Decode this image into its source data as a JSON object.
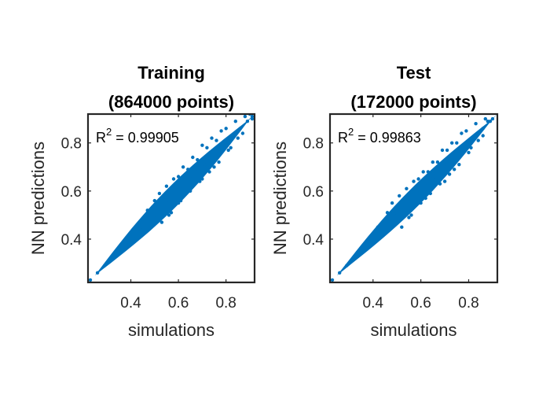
{
  "chart_data": [
    {
      "type": "scatter",
      "title": [
        "Training",
        "(864000 points)"
      ],
      "xlabel": "simulations",
      "ylabel": "NN predictions",
      "xlim": [
        0.22,
        0.92
      ],
      "ylim": [
        0.22,
        0.92
      ],
      "xticks": [
        0.4,
        0.6,
        0.8
      ],
      "yticks": [
        0.4,
        0.6,
        0.8
      ],
      "xtick_labels": [
        "0.4",
        "0.6",
        "0.8"
      ],
      "ytick_labels": [
        "0.4",
        "0.6",
        "0.8"
      ],
      "annotation": {
        "prefix": "R",
        "sup": "2",
        "text": " = 0.99905"
      },
      "point_count": 864000,
      "color": "#0072BD",
      "grid": false,
      "series": [
        {
          "points": [
            [
              0.23,
              0.23
            ],
            [
              0.26,
              0.26
            ],
            [
              0.29,
              0.29
            ],
            [
              0.32,
              0.32
            ],
            [
              0.35,
              0.35
            ],
            [
              0.38,
              0.38
            ],
            [
              0.41,
              0.41
            ],
            [
              0.44,
              0.44
            ],
            [
              0.47,
              0.47
            ],
            [
              0.5,
              0.5
            ],
            [
              0.53,
              0.53
            ],
            [
              0.56,
              0.56
            ],
            [
              0.59,
              0.59
            ],
            [
              0.62,
              0.62
            ],
            [
              0.65,
              0.65
            ],
            [
              0.68,
              0.68
            ],
            [
              0.71,
              0.71
            ],
            [
              0.74,
              0.74
            ],
            [
              0.77,
              0.77
            ],
            [
              0.8,
              0.8
            ],
            [
              0.83,
              0.83
            ],
            [
              0.86,
              0.86
            ],
            [
              0.89,
              0.89
            ],
            [
              0.91,
              0.91
            ],
            [
              0.5,
              0.56
            ],
            [
              0.52,
              0.59
            ],
            [
              0.55,
              0.62
            ],
            [
              0.58,
              0.65
            ],
            [
              0.62,
              0.7
            ],
            [
              0.66,
              0.74
            ],
            [
              0.7,
              0.79
            ],
            [
              0.74,
              0.82
            ],
            [
              0.78,
              0.85
            ],
            [
              0.53,
              0.47
            ],
            [
              0.57,
              0.51
            ],
            [
              0.61,
              0.56
            ],
            [
              0.65,
              0.6
            ],
            [
              0.69,
              0.64
            ],
            [
              0.73,
              0.68
            ],
            [
              0.77,
              0.72
            ],
            [
              0.81,
              0.77
            ],
            [
              0.85,
              0.82
            ],
            [
              0.6,
              0.66
            ],
            [
              0.64,
              0.69
            ],
            [
              0.68,
              0.73
            ],
            [
              0.72,
              0.78
            ],
            [
              0.76,
              0.81
            ],
            [
              0.8,
              0.86
            ],
            [
              0.84,
              0.89
            ],
            [
              0.88,
              0.91
            ],
            [
              0.47,
              0.52
            ],
            [
              0.43,
              0.46
            ],
            [
              0.56,
              0.5
            ],
            [
              0.6,
              0.55
            ],
            [
              0.7,
              0.65
            ],
            [
              0.75,
              0.7
            ],
            [
              0.82,
              0.78
            ],
            [
              0.87,
              0.84
            ],
            [
              0.91,
              0.9
            ],
            [
              0.9,
              0.92
            ]
          ]
        }
      ]
    },
    {
      "type": "scatter",
      "title": [
        "Test",
        "(172000 points)"
      ],
      "xlabel": "simulations",
      "ylabel": "NN predictions",
      "xlim": [
        0.22,
        0.92
      ],
      "ylim": [
        0.22,
        0.92
      ],
      "xticks": [
        0.4,
        0.6,
        0.8
      ],
      "yticks": [
        0.4,
        0.6,
        0.8
      ],
      "xtick_labels": [
        "0.4",
        "0.6",
        "0.8"
      ],
      "ytick_labels": [
        "0.4",
        "0.6",
        "0.8"
      ],
      "annotation": {
        "prefix": "R",
        "sup": "2",
        "text": " = 0.99863"
      },
      "point_count": 172000,
      "color": "#0072BD",
      "grid": false,
      "series": [
        {
          "points": [
            [
              0.23,
              0.23
            ],
            [
              0.26,
              0.26
            ],
            [
              0.29,
              0.29
            ],
            [
              0.32,
              0.32
            ],
            [
              0.35,
              0.35
            ],
            [
              0.38,
              0.38
            ],
            [
              0.41,
              0.41
            ],
            [
              0.44,
              0.44
            ],
            [
              0.47,
              0.47
            ],
            [
              0.5,
              0.5
            ],
            [
              0.53,
              0.53
            ],
            [
              0.56,
              0.56
            ],
            [
              0.59,
              0.59
            ],
            [
              0.62,
              0.62
            ],
            [
              0.65,
              0.65
            ],
            [
              0.68,
              0.68
            ],
            [
              0.71,
              0.71
            ],
            [
              0.74,
              0.74
            ],
            [
              0.77,
              0.77
            ],
            [
              0.8,
              0.8
            ],
            [
              0.83,
              0.83
            ],
            [
              0.86,
              0.86
            ],
            [
              0.89,
              0.89
            ],
            [
              0.9,
              0.9
            ],
            [
              0.48,
              0.55
            ],
            [
              0.51,
              0.58
            ],
            [
              0.54,
              0.61
            ],
            [
              0.57,
              0.64
            ],
            [
              0.61,
              0.68
            ],
            [
              0.65,
              0.72
            ],
            [
              0.69,
              0.77
            ],
            [
              0.73,
              0.8
            ],
            [
              0.77,
              0.84
            ],
            [
              0.52,
              0.45
            ],
            [
              0.56,
              0.5
            ],
            [
              0.6,
              0.55
            ],
            [
              0.64,
              0.59
            ],
            [
              0.68,
              0.63
            ],
            [
              0.72,
              0.67
            ],
            [
              0.76,
              0.71
            ],
            [
              0.8,
              0.76
            ],
            [
              0.84,
              0.81
            ],
            [
              0.59,
              0.65
            ],
            [
              0.63,
              0.68
            ],
            [
              0.67,
              0.72
            ],
            [
              0.71,
              0.77
            ],
            [
              0.75,
              0.8
            ],
            [
              0.79,
              0.85
            ],
            [
              0.83,
              0.88
            ],
            [
              0.87,
              0.9
            ],
            [
              0.46,
              0.51
            ],
            [
              0.42,
              0.45
            ],
            [
              0.55,
              0.49
            ],
            [
              0.62,
              0.57
            ],
            [
              0.7,
              0.64
            ],
            [
              0.74,
              0.69
            ],
            [
              0.81,
              0.78
            ],
            [
              0.86,
              0.83
            ],
            [
              0.88,
              0.89
            ]
          ]
        }
      ]
    }
  ]
}
